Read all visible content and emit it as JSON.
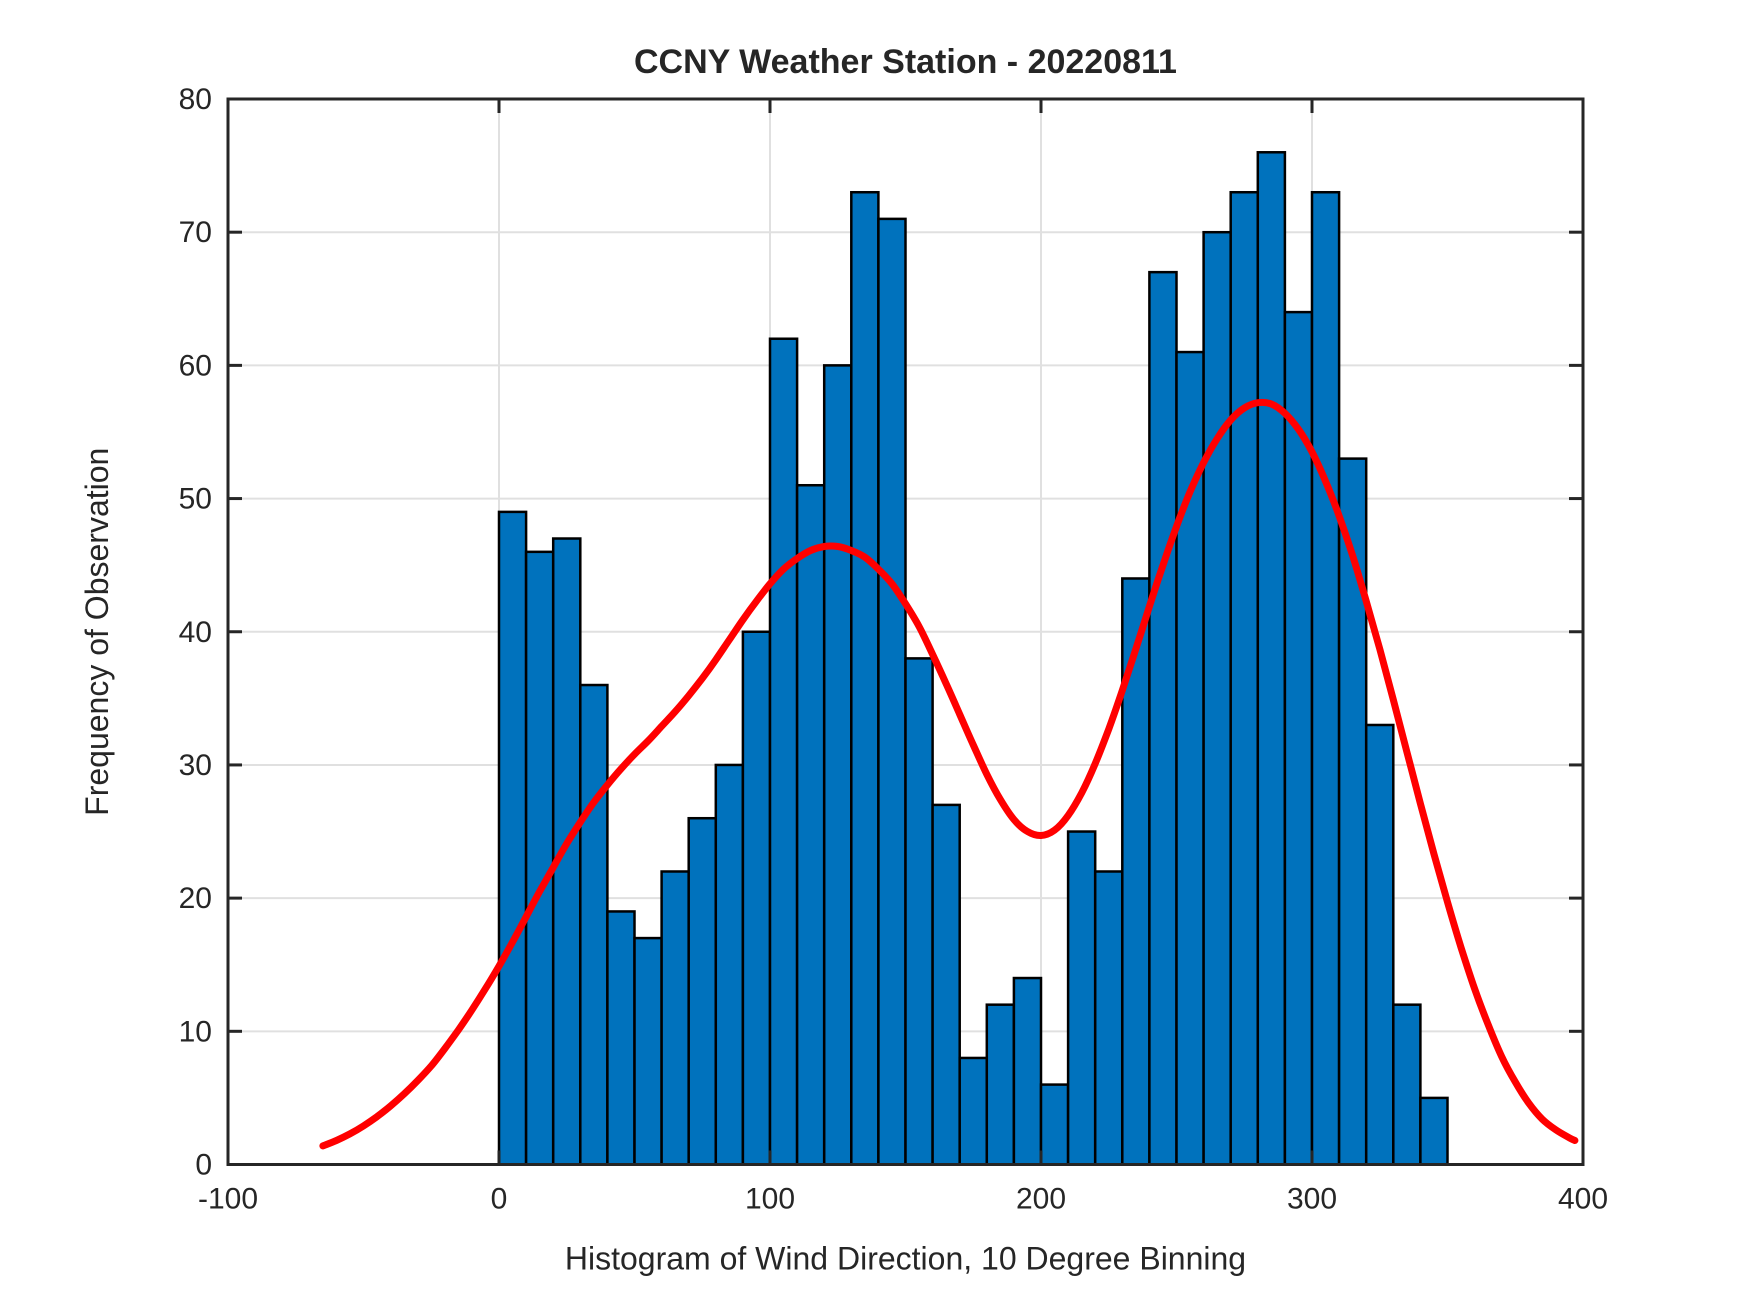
{
  "title": "CCNY Weather Station - 20220811",
  "chart_data": {
    "type": "bar",
    "subtype": "histogram-with-density-curve",
    "title": "CCNY Weather Station - 20220811",
    "xlabel": "Histogram of Wind Direction, 10 Degree Binning",
    "ylabel": "Frequency of Observation",
    "xlim": [
      -100,
      400
    ],
    "ylim": [
      0,
      80
    ],
    "xticks": [
      -100,
      0,
      100,
      200,
      300,
      400
    ],
    "yticks": [
      0,
      10,
      20,
      30,
      40,
      50,
      60,
      70,
      80
    ],
    "grid": "on",
    "legend_position": "none",
    "bin_width": 10,
    "bin_starts": [
      0,
      10,
      20,
      30,
      40,
      50,
      60,
      70,
      80,
      90,
      100,
      110,
      120,
      130,
      140,
      150,
      160,
      170,
      180,
      190,
      200,
      210,
      220,
      230,
      240,
      250,
      260,
      270,
      280,
      290,
      300,
      310,
      320,
      330,
      340
    ],
    "categories": [
      "0-10",
      "10-20",
      "20-30",
      "30-40",
      "40-50",
      "50-60",
      "60-70",
      "70-80",
      "80-90",
      "90-100",
      "100-110",
      "110-120",
      "120-130",
      "130-140",
      "140-150",
      "150-160",
      "160-170",
      "170-180",
      "180-190",
      "190-200",
      "200-210",
      "210-220",
      "220-230",
      "230-240",
      "240-250",
      "250-260",
      "260-270",
      "270-280",
      "280-290",
      "290-300",
      "300-310",
      "310-320",
      "320-330",
      "330-340",
      "340-350"
    ],
    "values": [
      49,
      46,
      47,
      36,
      19,
      17,
      22,
      26,
      30,
      40,
      62,
      51,
      60,
      73,
      71,
      38,
      27,
      8,
      12,
      14,
      6,
      25,
      22,
      44,
      67,
      61,
      70,
      73,
      76,
      64,
      73,
      53,
      33,
      12,
      5
    ],
    "curve": {
      "name": "density-fit",
      "points": [
        [
          -65,
          1.4
        ],
        [
          -60,
          1.8
        ],
        [
          -55,
          2.3
        ],
        [
          -50,
          2.9
        ],
        [
          -45,
          3.6
        ],
        [
          -40,
          4.4
        ],
        [
          -35,
          5.3
        ],
        [
          -30,
          6.3
        ],
        [
          -25,
          7.4
        ],
        [
          -20,
          8.7
        ],
        [
          -15,
          10.1
        ],
        [
          -10,
          11.6
        ],
        [
          -5,
          13.2
        ],
        [
          0,
          14.9
        ],
        [
          5,
          16.7
        ],
        [
          10,
          18.6
        ],
        [
          15,
          20.5
        ],
        [
          20,
          22.3
        ],
        [
          25,
          24.1
        ],
        [
          30,
          25.7
        ],
        [
          35,
          27.2
        ],
        [
          40,
          28.5
        ],
        [
          45,
          29.7
        ],
        [
          50,
          30.8
        ],
        [
          55,
          31.8
        ],
        [
          60,
          32.9
        ],
        [
          65,
          34.0
        ],
        [
          70,
          35.2
        ],
        [
          75,
          36.5
        ],
        [
          80,
          37.9
        ],
        [
          85,
          39.4
        ],
        [
          90,
          40.9
        ],
        [
          95,
          42.3
        ],
        [
          100,
          43.6
        ],
        [
          105,
          44.7
        ],
        [
          110,
          45.5
        ],
        [
          115,
          46.1
        ],
        [
          120,
          46.4
        ],
        [
          125,
          46.4
        ],
        [
          130,
          46.1
        ],
        [
          135,
          45.6
        ],
        [
          140,
          44.7
        ],
        [
          145,
          43.6
        ],
        [
          150,
          42.1
        ],
        [
          155,
          40.4
        ],
        [
          160,
          38.3
        ],
        [
          165,
          36.1
        ],
        [
          170,
          33.8
        ],
        [
          175,
          31.5
        ],
        [
          180,
          29.3
        ],
        [
          185,
          27.4
        ],
        [
          190,
          25.9
        ],
        [
          195,
          25.0
        ],
        [
          200,
          24.7
        ],
        [
          205,
          25.1
        ],
        [
          210,
          26.2
        ],
        [
          215,
          27.9
        ],
        [
          220,
          30.1
        ],
        [
          225,
          32.7
        ],
        [
          230,
          35.6
        ],
        [
          235,
          38.7
        ],
        [
          240,
          41.9
        ],
        [
          245,
          45.0
        ],
        [
          250,
          47.9
        ],
        [
          255,
          50.5
        ],
        [
          260,
          52.7
        ],
        [
          265,
          54.5
        ],
        [
          270,
          55.9
        ],
        [
          275,
          56.8
        ],
        [
          280,
          57.2
        ],
        [
          285,
          57.1
        ],
        [
          290,
          56.4
        ],
        [
          295,
          55.2
        ],
        [
          300,
          53.5
        ],
        [
          305,
          51.3
        ],
        [
          310,
          48.7
        ],
        [
          315,
          45.7
        ],
        [
          320,
          42.3
        ],
        [
          325,
          38.7
        ],
        [
          330,
          34.9
        ],
        [
          335,
          31.0
        ],
        [
          340,
          27.1
        ],
        [
          345,
          23.3
        ],
        [
          350,
          19.7
        ],
        [
          355,
          16.3
        ],
        [
          360,
          13.2
        ],
        [
          365,
          10.5
        ],
        [
          370,
          8.1
        ],
        [
          375,
          6.2
        ],
        [
          380,
          4.6
        ],
        [
          385,
          3.4
        ],
        [
          390,
          2.6
        ],
        [
          395,
          2.0
        ],
        [
          397,
          1.8
        ]
      ]
    },
    "colors": {
      "bar_fill": "#0072BD",
      "bar_edge": "#000000",
      "curve": "#FF0000",
      "grid": "#E0E0E0",
      "axis": "#262626",
      "background": "#FFFFFF"
    }
  }
}
